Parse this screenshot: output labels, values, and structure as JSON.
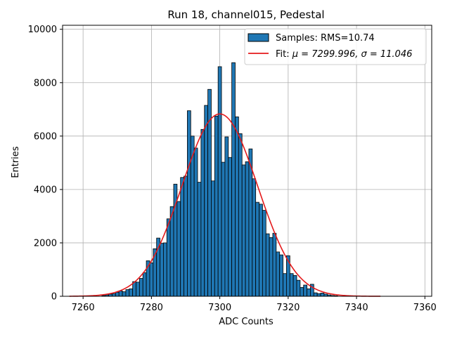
{
  "chart_data": {
    "type": "bar",
    "title": "Run 18, channel015, Pedestal",
    "xlabel": "ADC Counts",
    "ylabel": "Entries",
    "xlim": [
      7254,
      7362
    ],
    "ylim": [
      0,
      10150
    ],
    "xticks": [
      7260,
      7280,
      7300,
      7320,
      7340,
      7360
    ],
    "yticks": [
      0,
      2000,
      4000,
      6000,
      8000,
      10000
    ],
    "grid": true,
    "legend_position": "top-right",
    "colors": {
      "bar_fill": "#1f77b4",
      "bar_edge": "#000000",
      "fit_line": "#e41a1c",
      "grid": "#b0b0b0"
    },
    "histogram": {
      "name": "Samples: RMS=10.74",
      "bin_width": 1,
      "bins": [
        {
          "x": 7266,
          "y": 30
        },
        {
          "x": 7267,
          "y": 50
        },
        {
          "x": 7268,
          "y": 80
        },
        {
          "x": 7269,
          "y": 100
        },
        {
          "x": 7270,
          "y": 150
        },
        {
          "x": 7271,
          "y": 200
        },
        {
          "x": 7272,
          "y": 170
        },
        {
          "x": 7273,
          "y": 250
        },
        {
          "x": 7274,
          "y": 280
        },
        {
          "x": 7275,
          "y": 550
        },
        {
          "x": 7276,
          "y": 530
        },
        {
          "x": 7277,
          "y": 670
        },
        {
          "x": 7278,
          "y": 880
        },
        {
          "x": 7279,
          "y": 1330
        },
        {
          "x": 7280,
          "y": 1250
        },
        {
          "x": 7281,
          "y": 1780
        },
        {
          "x": 7282,
          "y": 2180
        },
        {
          "x": 7283,
          "y": 1980
        },
        {
          "x": 7284,
          "y": 2000
        },
        {
          "x": 7285,
          "y": 2900
        },
        {
          "x": 7286,
          "y": 3360
        },
        {
          "x": 7287,
          "y": 4200
        },
        {
          "x": 7288,
          "y": 3550
        },
        {
          "x": 7289,
          "y": 4450
        },
        {
          "x": 7290,
          "y": 4500
        },
        {
          "x": 7291,
          "y": 6950
        },
        {
          "x": 7292,
          "y": 6000
        },
        {
          "x": 7293,
          "y": 5550
        },
        {
          "x": 7294,
          "y": 4270
        },
        {
          "x": 7295,
          "y": 6250
        },
        {
          "x": 7296,
          "y": 7150
        },
        {
          "x": 7297,
          "y": 7750
        },
        {
          "x": 7298,
          "y": 4320
        },
        {
          "x": 7299,
          "y": 6750
        },
        {
          "x": 7300,
          "y": 8600
        },
        {
          "x": 7301,
          "y": 5020
        },
        {
          "x": 7302,
          "y": 5970
        },
        {
          "x": 7303,
          "y": 5200
        },
        {
          "x": 7304,
          "y": 8750
        },
        {
          "x": 7305,
          "y": 6720
        },
        {
          "x": 7306,
          "y": 6090
        },
        {
          "x": 7307,
          "y": 4920
        },
        {
          "x": 7308,
          "y": 5040
        },
        {
          "x": 7309,
          "y": 5520
        },
        {
          "x": 7310,
          "y": 4400
        },
        {
          "x": 7311,
          "y": 3520
        },
        {
          "x": 7312,
          "y": 3450
        },
        {
          "x": 7313,
          "y": 3220
        },
        {
          "x": 7314,
          "y": 2340
        },
        {
          "x": 7315,
          "y": 2200
        },
        {
          "x": 7316,
          "y": 2360
        },
        {
          "x": 7317,
          "y": 1660
        },
        {
          "x": 7318,
          "y": 1550
        },
        {
          "x": 7319,
          "y": 850
        },
        {
          "x": 7320,
          "y": 1520
        },
        {
          "x": 7321,
          "y": 850
        },
        {
          "x": 7322,
          "y": 780
        },
        {
          "x": 7323,
          "y": 600
        },
        {
          "x": 7324,
          "y": 330
        },
        {
          "x": 7325,
          "y": 420
        },
        {
          "x": 7326,
          "y": 280
        },
        {
          "x": 7327,
          "y": 450
        },
        {
          "x": 7328,
          "y": 130
        },
        {
          "x": 7329,
          "y": 100
        },
        {
          "x": 7330,
          "y": 120
        },
        {
          "x": 7331,
          "y": 80
        },
        {
          "x": 7332,
          "y": 50
        },
        {
          "x": 7333,
          "y": 30
        },
        {
          "x": 7334,
          "y": 20
        }
      ]
    },
    "fit": {
      "name_prefix": "Fit: ",
      "name_math": "μ = 7299.996, σ = 11.046",
      "mu": 7299.996,
      "sigma": 11.046,
      "amplitude": 6830,
      "x_range": [
        7256,
        7347
      ]
    }
  }
}
